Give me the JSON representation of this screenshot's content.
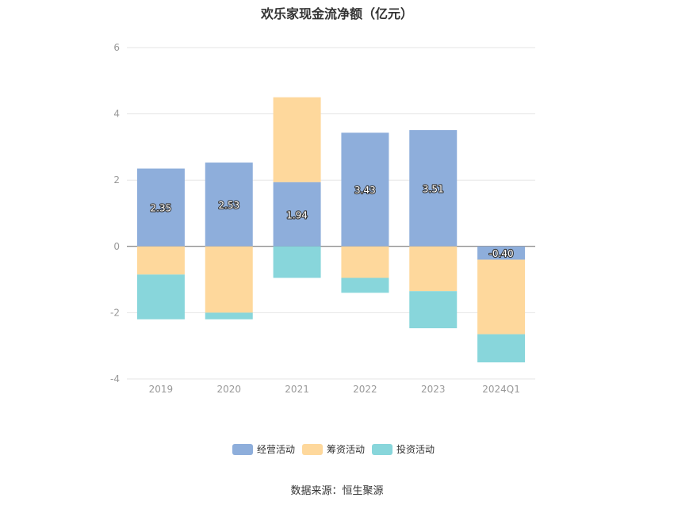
{
  "colors": {
    "operating": "#8eaedb",
    "financing": "#fed89c",
    "investing": "#88d6db",
    "grid": "#e6e6e6",
    "zero_line": "#666666",
    "text": "#333333",
    "tick_text": "#999999"
  },
  "chart_data": {
    "type": "bar",
    "stacked": true,
    "title": "欢乐家现金流净额（亿元）",
    "xlabel": "",
    "ylabel": "",
    "ylim": [
      -4,
      6
    ],
    "yticks": [
      -4,
      -2,
      0,
      2,
      4,
      6
    ],
    "categories": [
      "2019",
      "2020",
      "2021",
      "2022",
      "2023",
      "2024Q1"
    ],
    "series": [
      {
        "name": "经营活动",
        "color_key": "operating",
        "values": [
          2.35,
          2.53,
          1.94,
          3.43,
          3.51,
          -0.4
        ],
        "labels": [
          "2.35",
          "2.53",
          "1.94",
          "3.43",
          "3.51",
          "-0.40"
        ]
      },
      {
        "name": "筹资活动",
        "color_key": "financing",
        "values": [
          -0.85,
          -2.0,
          2.56,
          -0.95,
          -1.35,
          -2.25
        ]
      },
      {
        "name": "投资活动",
        "color_key": "investing",
        "values": [
          -1.35,
          -0.2,
          -0.95,
          -0.45,
          -1.12,
          -0.85
        ]
      }
    ],
    "grid": true,
    "legend_position": "bottom"
  },
  "legend": {
    "items": [
      {
        "label": "经营活动",
        "color_key": "operating"
      },
      {
        "label": "筹资活动",
        "color_key": "financing"
      },
      {
        "label": "投资活动",
        "color_key": "investing"
      }
    ]
  },
  "footer": {
    "source": "数据来源：恒生聚源"
  }
}
